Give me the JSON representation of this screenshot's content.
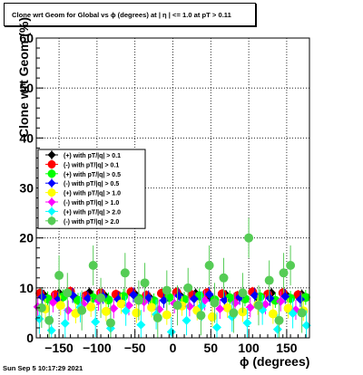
{
  "title": "Clone wrt Geom for Global vs ϕ (degrees) at | η | <= 1.0 at pT > 0.11",
  "footer": "Sun Sep  5 10:17:29 2021",
  "chart_data": {
    "type": "scatter",
    "xlabel": "ϕ (degrees)",
    "ylabel": "Clone wrt Geom (%)",
    "xlim": [
      -180,
      180
    ],
    "ylim": [
      0,
      60
    ],
    "x_ticks": [
      -150,
      -100,
      -50,
      0,
      50,
      100,
      150
    ],
    "y_ticks": [
      0,
      10,
      20,
      30,
      40,
      50,
      60
    ],
    "grid": true,
    "legend_position": "center-left",
    "series": [
      {
        "name": "(+) with pT/|q| > 0.1",
        "color": "#000000",
        "marker": "diamond",
        "x": [
          -170,
          -150,
          -130,
          -110,
          -90,
          -70,
          -50,
          -30,
          -10,
          10,
          30,
          50,
          70,
          90,
          110,
          130,
          150,
          170
        ],
        "y": [
          8.6,
          9.0,
          8.2,
          9.1,
          8.5,
          8.3,
          8.8,
          8.0,
          8.7,
          8.4,
          8.9,
          8.1,
          8.6,
          8.8,
          8.3,
          9.0,
          8.5,
          8.7
        ],
        "err": [
          1.0,
          1.0,
          1.0,
          1.0,
          1.0,
          1.0,
          1.0,
          1.0,
          1.0,
          1.0,
          1.0,
          1.0,
          1.0,
          1.0,
          1.0,
          1.0,
          1.0,
          1.0
        ]
      },
      {
        "name": "(-) with pT/|q| > 0.1",
        "color": "#ff0000",
        "marker": "circle",
        "x": [
          -175,
          -155,
          -135,
          -115,
          -95,
          -75,
          -55,
          -35,
          -15,
          5,
          25,
          45,
          65,
          85,
          105,
          125,
          145,
          165
        ],
        "y": [
          8.9,
          8.6,
          9.3,
          8.4,
          9.0,
          8.7,
          9.2,
          8.5,
          8.9,
          9.1,
          8.6,
          9.0,
          8.8,
          8.4,
          9.2,
          8.7,
          9.0,
          8.6
        ],
        "err": [
          1.0,
          1.0,
          1.0,
          1.0,
          1.0,
          1.0,
          1.0,
          1.0,
          1.0,
          1.0,
          1.0,
          1.0,
          1.0,
          1.0,
          1.0,
          1.0,
          1.0,
          1.0
        ]
      },
      {
        "name": "(+) with pT/|q| > 0.5",
        "color": "#00ff00",
        "marker": "circle",
        "x": [
          -165,
          -145,
          -125,
          -105,
          -85,
          -65,
          -45,
          -25,
          -5,
          15,
          35,
          55,
          75,
          95,
          115,
          135,
          155,
          175
        ],
        "y": [
          7.8,
          8.2,
          7.5,
          8.0,
          7.6,
          8.3,
          7.9,
          7.4,
          8.1,
          7.7,
          8.4,
          7.6,
          8.0,
          7.8,
          8.2,
          7.5,
          7.9,
          8.1
        ],
        "err": [
          1.5,
          1.5,
          1.5,
          1.5,
          1.5,
          1.5,
          1.5,
          1.5,
          1.5,
          1.5,
          1.5,
          1.5,
          1.5,
          1.5,
          1.5,
          1.5,
          1.5,
          1.5
        ]
      },
      {
        "name": "(-) with pT/|q| > 0.5",
        "color": "#0000ff",
        "marker": "diamond",
        "x": [
          -172,
          -152,
          -132,
          -112,
          -92,
          -72,
          -52,
          -32,
          -12,
          8,
          28,
          48,
          68,
          88,
          108,
          128,
          148,
          168
        ],
        "y": [
          8.2,
          7.6,
          8.5,
          7.9,
          8.3,
          7.7,
          8.6,
          8.0,
          7.5,
          8.4,
          7.8,
          8.7,
          7.6,
          8.1,
          8.5,
          7.9,
          8.3,
          7.7
        ],
        "err": [
          1.5,
          1.5,
          1.5,
          1.5,
          1.5,
          1.5,
          1.5,
          1.5,
          1.5,
          1.5,
          1.5,
          1.5,
          1.5,
          1.5,
          1.5,
          1.5,
          1.5,
          1.5
        ]
      },
      {
        "name": "(+) with pT/|q| > 1.0",
        "color": "#ffff00",
        "marker": "circle",
        "x": [
          -168,
          -148,
          -128,
          -108,
          -88,
          -68,
          -48,
          -28,
          -8,
          12,
          32,
          52,
          72,
          92,
          112,
          132,
          152,
          172
        ],
        "y": [
          5.8,
          6.5,
          4.9,
          6.2,
          5.3,
          6.8,
          5.0,
          6.1,
          4.6,
          6.4,
          5.5,
          4.2,
          6.0,
          5.2,
          6.6,
          4.8,
          5.9,
          5.4
        ],
        "err": [
          2.0,
          2.0,
          2.0,
          2.0,
          2.0,
          2.0,
          2.0,
          2.0,
          2.0,
          2.0,
          2.0,
          2.0,
          2.0,
          2.0,
          2.0,
          2.0,
          2.0,
          2.0
        ]
      },
      {
        "name": "(-) with pT/|q| > 1.0",
        "color": "#ff00ff",
        "marker": "diamond",
        "x": [
          -178,
          -158,
          -138,
          -118,
          -98,
          -78,
          -58,
          -38,
          -18,
          2,
          22,
          42,
          62,
          82,
          102,
          122,
          142,
          162
        ],
        "y": [
          6.2,
          7.1,
          5.5,
          6.8,
          7.4,
          5.9,
          6.5,
          7.2,
          5.7,
          6.9,
          6.3,
          7.5,
          5.8,
          7.0,
          6.1,
          6.7,
          7.3,
          5.6
        ],
        "err": [
          2.0,
          2.0,
          2.0,
          2.0,
          2.0,
          2.0,
          2.0,
          2.0,
          2.0,
          2.0,
          2.0,
          2.0,
          2.0,
          2.0,
          2.0,
          2.0,
          2.0,
          2.0
        ]
      },
      {
        "name": "(+) with pT/|q| > 2.0",
        "color": "#00ffff",
        "marker": "diamond",
        "x": [
          -176,
          -160,
          -142,
          -122,
          -102,
          -82,
          -62,
          -42,
          -22,
          -2,
          18,
          38,
          58,
          78,
          98,
          118,
          138,
          158,
          176
        ],
        "y": [
          3.8,
          1.5,
          2.9,
          6.1,
          3.2,
          1.9,
          5.4,
          2.6,
          4.7,
          1.2,
          3.5,
          6.4,
          2.1,
          4.2,
          3.0,
          5.6,
          1.7,
          4.9,
          2.5
        ],
        "err": [
          3.0,
          3.0,
          3.0,
          3.0,
          3.0,
          3.0,
          3.0,
          3.0,
          3.0,
          3.0,
          3.0,
          3.0,
          3.0,
          3.0,
          3.0,
          3.0,
          3.0,
          3.0,
          3.0
        ]
      },
      {
        "name": "(-) with pT/|q| > 2.0",
        "color": "#55cc55",
        "marker": "circle",
        "x": [
          -173,
          -163,
          -150,
          -139,
          -120,
          -105,
          -95,
          -82,
          -63,
          -45,
          -37,
          -20,
          -8,
          6,
          20,
          37,
          48,
          55,
          67,
          80,
          92,
          100,
          113,
          127,
          140,
          146,
          155,
          170
        ],
        "y": [
          6.0,
          3.5,
          12.5,
          9.0,
          5.5,
          14.5,
          8.0,
          3.0,
          13.0,
          7.5,
          11.0,
          4.0,
          9.5,
          6.5,
          10.0,
          4.5,
          14.5,
          7.0,
          12.0,
          5.0,
          9.0,
          20.0,
          6.5,
          11.5,
          3.5,
          13.0,
          14.5,
          5.0
        ],
        "err": [
          4.0,
          4.0,
          4.0,
          4.0,
          4.0,
          4.0,
          4.0,
          4.0,
          4.0,
          4.0,
          4.0,
          4.0,
          4.0,
          4.0,
          4.0,
          4.0,
          4.0,
          4.0,
          4.0,
          4.0,
          4.0,
          4.0,
          4.0,
          4.0,
          4.0,
          4.0,
          4.0,
          4.0
        ]
      }
    ]
  }
}
